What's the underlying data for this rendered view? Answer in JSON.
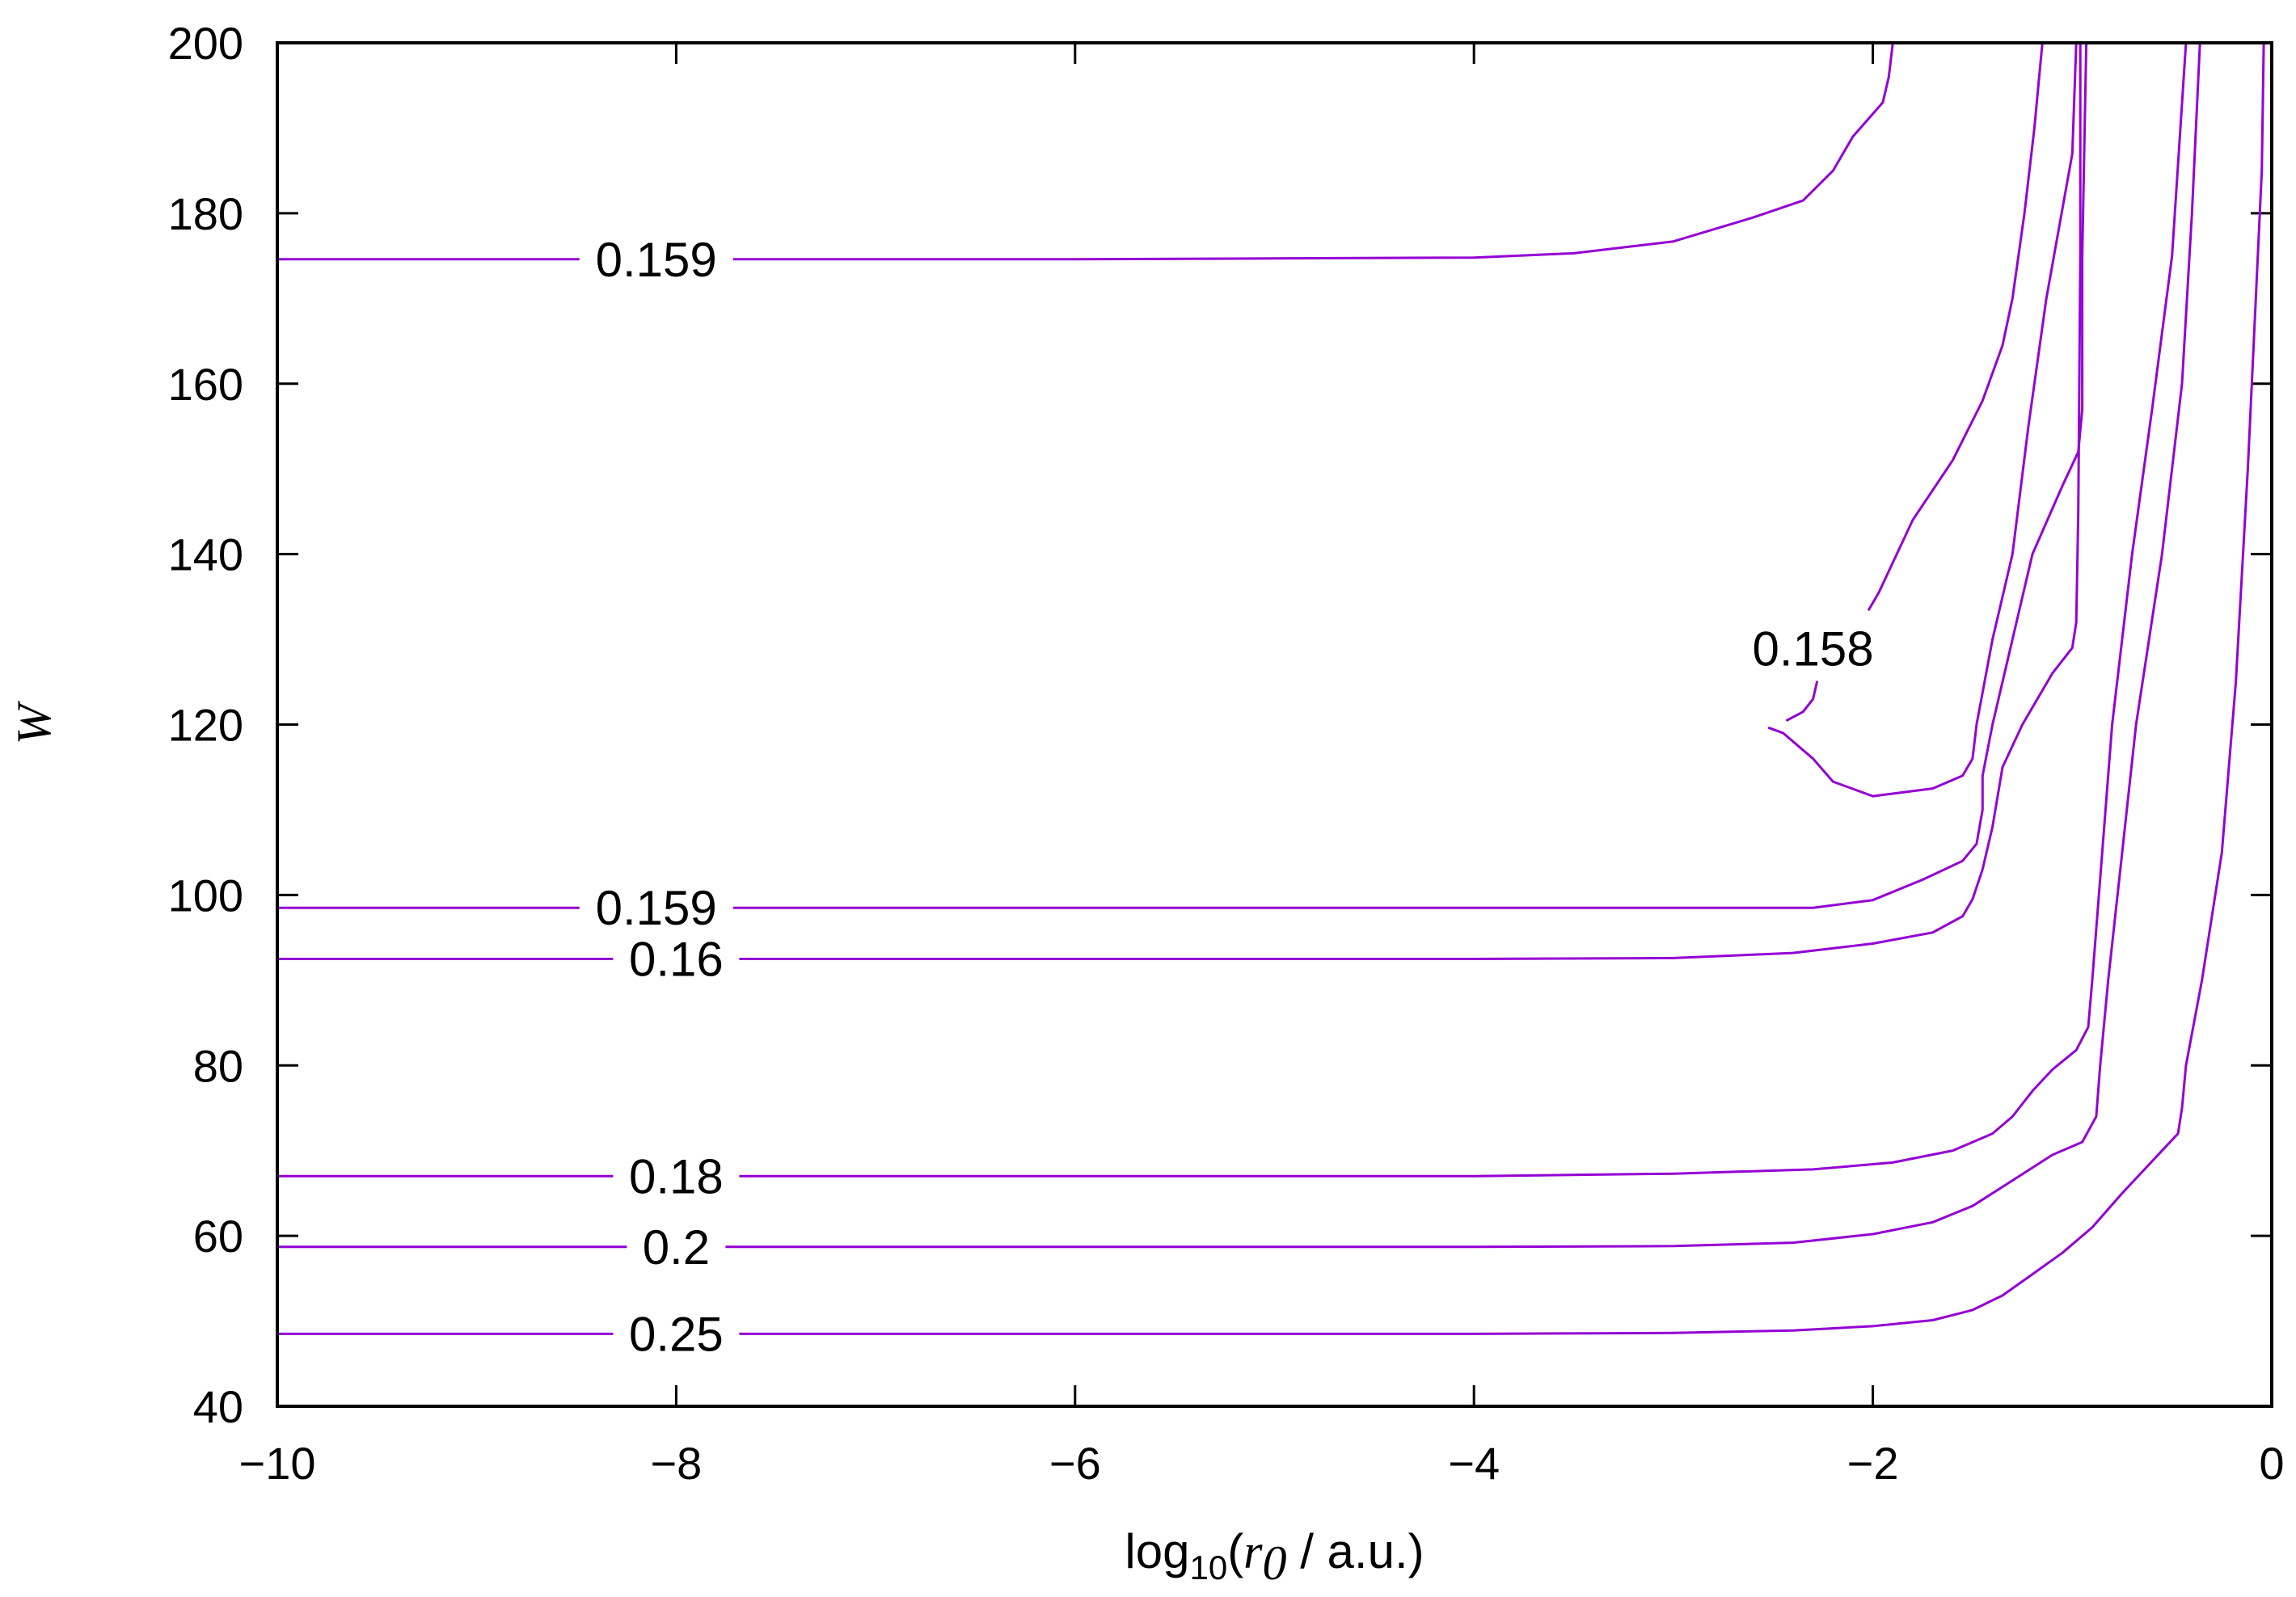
{
  "chart_data": {
    "type": "contour",
    "xlabel": {
      "prefix": "log",
      "subscript": "10",
      "open": "(",
      "variable": "r",
      "variable_subscript": "0",
      "suffix": " / a.u.)"
    },
    "ylabel": "W",
    "xlim": [
      -10,
      0
    ],
    "ylim": [
      40,
      200
    ],
    "x_ticks": [
      -10,
      -8,
      -6,
      -4,
      -2,
      0
    ],
    "x_tick_labels": [
      "−10",
      "−8",
      "−6",
      "−4",
      "−2",
      "0"
    ],
    "y_ticks": [
      40,
      60,
      80,
      100,
      120,
      140,
      160,
      180,
      200
    ],
    "y_tick_labels": [
      "40",
      "60",
      "80",
      "100",
      "120",
      "140",
      "160",
      "180",
      "200"
    ],
    "grid": false,
    "line_color": "#9400d3",
    "contours": [
      {
        "level_label": "0.159",
        "label_at": [
          -8.1,
          174.6
        ],
        "points": [
          [
            -10,
            174.6
          ],
          [
            -6,
            174.6
          ],
          [
            -4,
            174.8
          ],
          [
            -3.5,
            175.3
          ],
          [
            -3,
            176.7
          ],
          [
            -2.6,
            179.5
          ],
          [
            -2.35,
            181.5
          ],
          [
            -2.2,
            185
          ],
          [
            -2.1,
            189
          ],
          [
            -1.95,
            193
          ],
          [
            -1.92,
            196
          ],
          [
            -1.9,
            200
          ]
        ]
      },
      {
        "level_label": "0.159",
        "label_at": [
          -8.1,
          98.5
        ],
        "points": [
          [
            -10,
            98.5
          ],
          [
            -6,
            98.5
          ],
          [
            -3,
            98.5
          ],
          [
            -2.3,
            98.5
          ],
          [
            -2.0,
            99.4
          ],
          [
            -1.75,
            101.8
          ],
          [
            -1.55,
            104
          ],
          [
            -1.48,
            106
          ],
          [
            -1.45,
            110
          ],
          [
            -1.45,
            114
          ],
          [
            -1.4,
            120
          ],
          [
            -1.3,
            130
          ],
          [
            -1.2,
            140
          ],
          [
            -1.05,
            148
          ],
          [
            -0.97,
            152
          ],
          [
            -0.95,
            157
          ],
          [
            -0.95,
            175
          ],
          [
            -0.93,
            200
          ]
        ]
      },
      {
        "level_label": "0.158",
        "label_at": [
          -2.3,
          128.9
        ],
        "points": [
          [
            -2.52,
            119.6
          ],
          [
            -2.45,
            119
          ],
          [
            -2.3,
            116
          ],
          [
            -2.2,
            113.3
          ],
          [
            -2.0,
            111.6
          ],
          [
            -1.7,
            112.5
          ],
          [
            -1.55,
            114
          ],
          [
            -1.5,
            116
          ],
          [
            -1.48,
            120
          ],
          [
            -1.4,
            130
          ],
          [
            -1.35,
            135
          ],
          [
            -1.3,
            140
          ],
          [
            -1.22,
            155
          ],
          [
            -1.13,
            170
          ],
          [
            -1.0,
            187
          ],
          [
            -0.98,
            200
          ]
        ]
      },
      {
        "level_label": "0.158",
        "label_at": null,
        "points": [
          [
            -2.43,
            120.5
          ],
          [
            -2.35,
            121.5
          ],
          [
            -2.3,
            123
          ],
          [
            -2.28,
            125
          ]
        ]
      },
      {
        "level_label": "0.158",
        "label_at": null,
        "points": [
          [
            -2.02,
            133.5
          ],
          [
            -1.97,
            135.5
          ],
          [
            -1.92,
            138
          ],
          [
            -1.8,
            144
          ],
          [
            -1.6,
            151
          ],
          [
            -1.45,
            158
          ],
          [
            -1.35,
            164.5
          ],
          [
            -1.3,
            170
          ],
          [
            -1.24,
            180
          ],
          [
            -1.19,
            190
          ],
          [
            -1.15,
            200
          ]
        ]
      },
      {
        "level_label": "0.16",
        "label_at": [
          -8.0,
          92.5
        ],
        "points": [
          [
            -10,
            92.5
          ],
          [
            -6,
            92.5
          ],
          [
            -4,
            92.5
          ],
          [
            -3,
            92.6
          ],
          [
            -2.4,
            93.2
          ],
          [
            -2.0,
            94.3
          ],
          [
            -1.7,
            95.6
          ],
          [
            -1.55,
            97.5
          ],
          [
            -1.5,
            99.5
          ],
          [
            -1.45,
            103
          ],
          [
            -1.4,
            108
          ],
          [
            -1.35,
            115
          ],
          [
            -1.25,
            120
          ],
          [
            -1.1,
            126
          ],
          [
            -1.0,
            129
          ],
          [
            -0.98,
            132
          ],
          [
            -0.97,
            145
          ],
          [
            -0.96,
            175
          ],
          [
            -0.96,
            200
          ]
        ]
      },
      {
        "level_label": "0.18",
        "label_at": [
          -8.0,
          67.0
        ],
        "points": [
          [
            -10,
            67
          ],
          [
            -6,
            67
          ],
          [
            -4,
            67
          ],
          [
            -3,
            67.3
          ],
          [
            -2.3,
            67.8
          ],
          [
            -1.9,
            68.6
          ],
          [
            -1.6,
            70
          ],
          [
            -1.4,
            72
          ],
          [
            -1.3,
            74
          ],
          [
            -1.2,
            77
          ],
          [
            -1.1,
            79.5
          ],
          [
            -0.98,
            81.8
          ],
          [
            -0.92,
            84.5
          ],
          [
            -0.9,
            90
          ],
          [
            -0.85,
            105
          ],
          [
            -0.8,
            120
          ],
          [
            -0.7,
            140
          ],
          [
            -0.6,
            157
          ],
          [
            -0.5,
            175
          ],
          [
            -0.43,
            200
          ]
        ]
      },
      {
        "level_label": "0.2",
        "label_at": [
          -8.0,
          58.7
        ],
        "points": [
          [
            -10,
            58.7
          ],
          [
            -6,
            58.7
          ],
          [
            -4,
            58.7
          ],
          [
            -3,
            58.8
          ],
          [
            -2.4,
            59.2
          ],
          [
            -2.0,
            60.2
          ],
          [
            -1.7,
            61.6
          ],
          [
            -1.5,
            63.5
          ],
          [
            -1.3,
            66.5
          ],
          [
            -1.1,
            69.5
          ],
          [
            -0.95,
            71
          ],
          [
            -0.88,
            74
          ],
          [
            -0.86,
            80
          ],
          [
            -0.82,
            90
          ],
          [
            -0.75,
            105
          ],
          [
            -0.68,
            120
          ],
          [
            -0.55,
            140
          ],
          [
            -0.45,
            160
          ],
          [
            -0.4,
            180
          ],
          [
            -0.36,
            200
          ]
        ]
      },
      {
        "level_label": "0.25",
        "label_at": [
          -8.0,
          48.5
        ],
        "points": [
          [
            -10,
            48.5
          ],
          [
            -6,
            48.5
          ],
          [
            -4,
            48.5
          ],
          [
            -3,
            48.6
          ],
          [
            -2.4,
            48.9
          ],
          [
            -2.0,
            49.4
          ],
          [
            -1.7,
            50.1
          ],
          [
            -1.5,
            51.3
          ],
          [
            -1.35,
            53
          ],
          [
            -1.2,
            55.5
          ],
          [
            -1.05,
            58
          ],
          [
            -0.9,
            61
          ],
          [
            -0.75,
            65
          ],
          [
            -0.55,
            70
          ],
          [
            -0.47,
            72
          ],
          [
            -0.45,
            75
          ],
          [
            -0.43,
            80
          ],
          [
            -0.35,
            90
          ],
          [
            -0.25,
            105
          ],
          [
            -0.18,
            125
          ],
          [
            -0.12,
            150
          ],
          [
            -0.08,
            170
          ],
          [
            -0.05,
            185
          ],
          [
            -0.04,
            200
          ]
        ]
      }
    ]
  }
}
